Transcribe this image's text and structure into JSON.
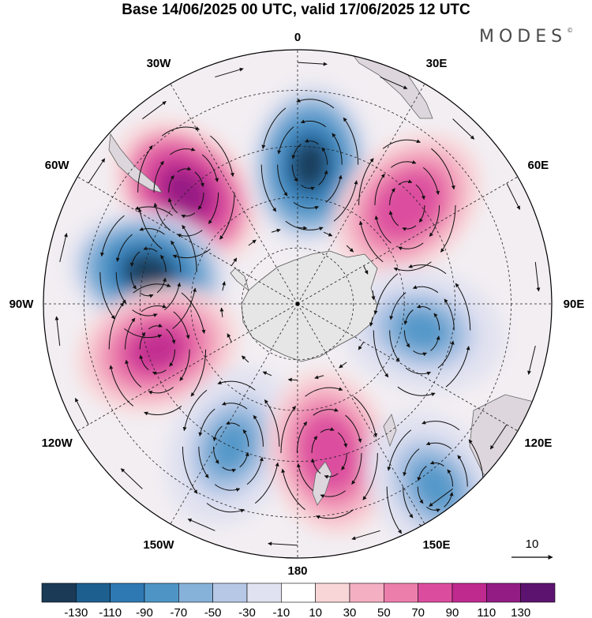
{
  "title": "Base 14/06/2025 00 UTC, valid 17/06/2025 12 UTC",
  "brand": "MODES",
  "brand_mark": "©",
  "longitude_labels": [
    {
      "text": "0",
      "lon": 0
    },
    {
      "text": "30E",
      "lon": 30
    },
    {
      "text": "60E",
      "lon": 60
    },
    {
      "text": "90E",
      "lon": 90
    },
    {
      "text": "120E",
      "lon": 120
    },
    {
      "text": "150E",
      "lon": 150
    },
    {
      "text": "180",
      "lon": 180
    },
    {
      "text": "150W",
      "lon": -150
    },
    {
      "text": "120W",
      "lon": -120
    },
    {
      "text": "90W",
      "lon": -90
    },
    {
      "text": "60W",
      "lon": -60
    },
    {
      "text": "30W",
      "lon": -30
    }
  ],
  "reference_vector": {
    "label": "10"
  },
  "colorbar": {
    "labels": [
      "-130",
      "-110",
      "-90",
      "-70",
      "-50",
      "-30",
      "-10",
      "10",
      "30",
      "50",
      "70",
      "90",
      "110",
      "130"
    ],
    "colors": [
      "#1b3a55",
      "#1d5f8f",
      "#2e79b3",
      "#4e95c6",
      "#86b1d8",
      "#b7c8e6",
      "#e1e2f1",
      "#ffffff",
      "#f8d6d8",
      "#f4afc3",
      "#ec7eac",
      "#dc4c9e",
      "#bf2a8f",
      "#921c84",
      "#5c1370"
    ]
  },
  "anomaly_centers": [
    {
      "name": "high-south-atlantic",
      "lon": -45,
      "lat_ring": 0.62,
      "sign": "positive",
      "peak": 130
    },
    {
      "name": "low-weddell",
      "lon": 5,
      "lat_ring": 0.55,
      "sign": "negative",
      "peak": -130
    },
    {
      "name": "high-indian",
      "lon": 48,
      "lat_ring": 0.58,
      "sign": "positive",
      "peak": 90
    },
    {
      "name": "low-amundsen-drake",
      "lon": -78,
      "lat_ring": 0.6,
      "sign": "negative",
      "peak": -130
    },
    {
      "name": "high-south-pacific-east",
      "lon": -108,
      "lat_ring": 0.58,
      "sign": "positive",
      "peak": 110
    },
    {
      "name": "low-south-pacific",
      "lon": -155,
      "lat_ring": 0.62,
      "sign": "negative",
      "peak": -70
    },
    {
      "name": "high-tasman",
      "lon": 168,
      "lat_ring": 0.6,
      "sign": "positive",
      "peak": 90
    },
    {
      "name": "low-south-indian-east",
      "lon": 102,
      "lat_ring": 0.5,
      "sign": "negative",
      "peak": -70
    },
    {
      "name": "low-australia-south",
      "lon": 143,
      "lat_ring": 0.9,
      "sign": "negative",
      "peak": -70
    }
  ]
}
